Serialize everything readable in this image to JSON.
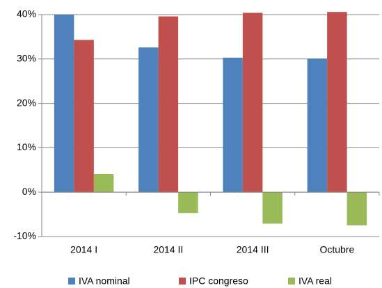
{
  "chart_data": {
    "type": "bar",
    "categories": [
      "2014 I",
      "2014 II",
      "2014 III",
      "Octubre"
    ],
    "series": [
      {
        "name": "IVA nominal",
        "color": "#4f81bd",
        "values": [
          40,
          32.6,
          30.3,
          30.1
        ]
      },
      {
        "name": "IPC congreso",
        "color": "#c0504d",
        "values": [
          34.3,
          39.6,
          40.4,
          40.6
        ]
      },
      {
        "name": "IVA real",
        "color": "#9bbb59",
        "values": [
          4.1,
          -4.7,
          -7.1,
          -7.5
        ]
      }
    ],
    "ylim": [
      -10,
      40
    ],
    "yticks": [
      {
        "value": -10,
        "label": "-10%"
      },
      {
        "value": 0,
        "label": "0%"
      },
      {
        "value": 10,
        "label": "10%"
      },
      {
        "value": 20,
        "label": "20%"
      },
      {
        "value": 30,
        "label": "30%"
      },
      {
        "value": 40,
        "label": "40%"
      }
    ],
    "grid": true,
    "legend": "bottom"
  }
}
